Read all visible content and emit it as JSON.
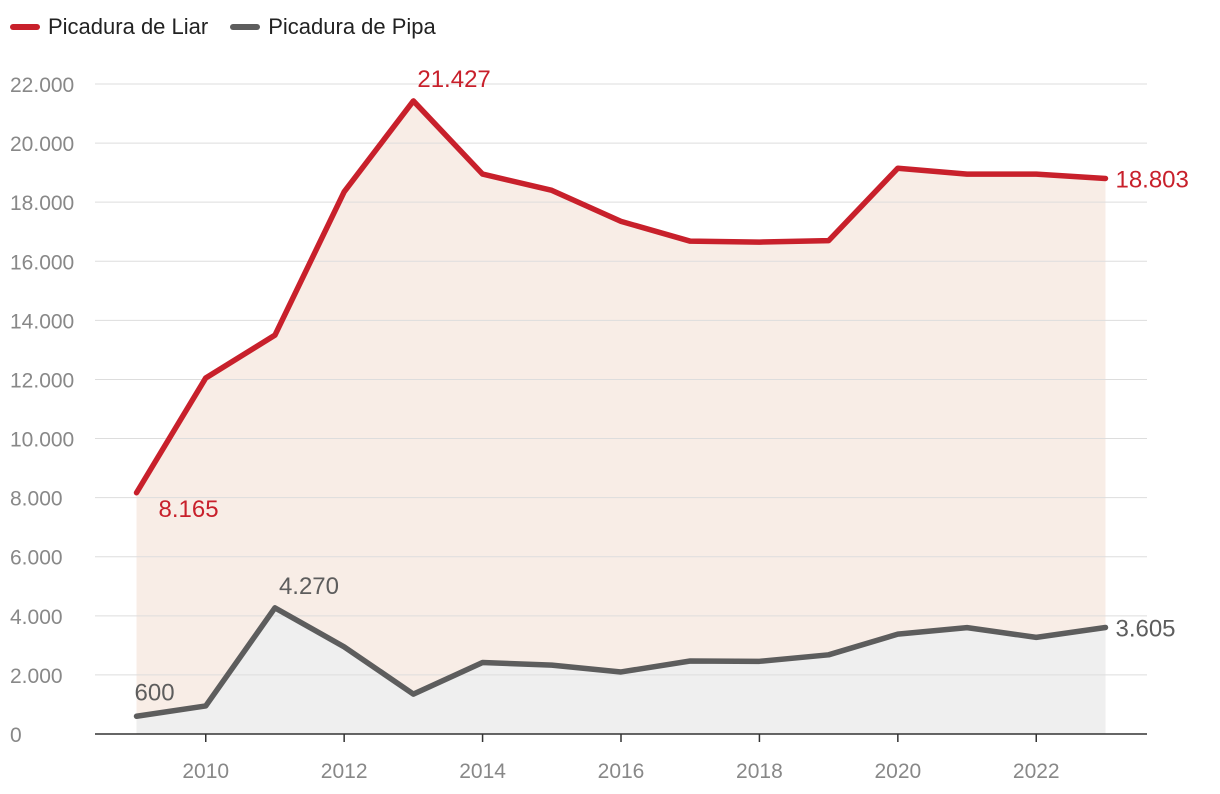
{
  "chart_data": {
    "type": "line",
    "title": "",
    "xlabel": "",
    "ylabel": "",
    "x": [
      2009,
      2010,
      2011,
      2012,
      2013,
      2014,
      2015,
      2016,
      2017,
      2018,
      2019,
      2020,
      2021,
      2022,
      2023
    ],
    "xlim": [
      2008.4,
      2023.6
    ],
    "ylim": [
      0,
      22000
    ],
    "x_ticks": [
      {
        "value": 2010,
        "label": "2010"
      },
      {
        "value": 2012,
        "label": "2012"
      },
      {
        "value": 2014,
        "label": "2014"
      },
      {
        "value": 2016,
        "label": "2016"
      },
      {
        "value": 2018,
        "label": "2018"
      },
      {
        "value": 2020,
        "label": "2020"
      },
      {
        "value": 2022,
        "label": "2022"
      }
    ],
    "y_ticks": [
      {
        "value": 0,
        "label": "0"
      },
      {
        "value": 2000,
        "label": "2.000"
      },
      {
        "value": 4000,
        "label": "4.000"
      },
      {
        "value": 6000,
        "label": "6.000"
      },
      {
        "value": 8000,
        "label": "8.000"
      },
      {
        "value": 10000,
        "label": "10.000"
      },
      {
        "value": 12000,
        "label": "12.000"
      },
      {
        "value": 14000,
        "label": "14.000"
      },
      {
        "value": 16000,
        "label": "16.000"
      },
      {
        "value": 18000,
        "label": "18.000"
      },
      {
        "value": 20000,
        "label": "20.000"
      },
      {
        "value": 22000,
        "label": "22.000"
      }
    ],
    "grid": true,
    "legend_position": "top-left",
    "series": [
      {
        "name": "Picadura de Liar",
        "color": "#c8202b",
        "fill": "#f8ede6",
        "values": [
          8165,
          12050,
          13500,
          18350,
          21427,
          18950,
          18400,
          17350,
          16680,
          16650,
          16700,
          19150,
          18950,
          18950,
          18803
        ],
        "annotations": [
          {
            "index": 0,
            "label": "8.165",
            "position": "below-right"
          },
          {
            "index": 4,
            "label": "21.427",
            "position": "above-right"
          },
          {
            "index": 14,
            "label": "18.803",
            "position": "right"
          }
        ]
      },
      {
        "name": "Picadura de Pipa",
        "color": "#5d5d5d",
        "fill": "#efefef",
        "values": [
          600,
          950,
          4270,
          2950,
          1350,
          2420,
          2330,
          2100,
          2470,
          2460,
          2680,
          3380,
          3600,
          3270,
          3605
        ],
        "annotations": [
          {
            "index": 0,
            "label": "600",
            "position": "above"
          },
          {
            "index": 2,
            "label": "4.270",
            "position": "above-right"
          },
          {
            "index": 14,
            "label": "3.605",
            "position": "right"
          }
        ]
      }
    ]
  }
}
